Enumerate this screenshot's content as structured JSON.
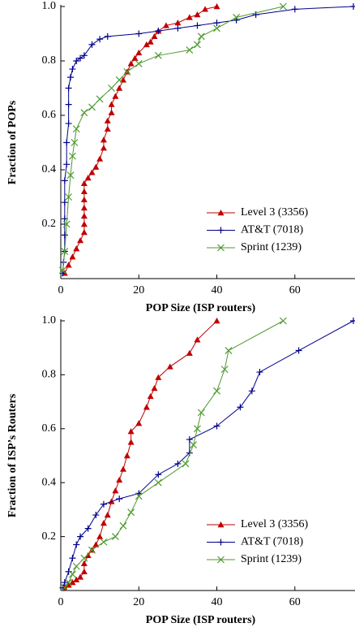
{
  "chart_data": [
    {
      "type": "line",
      "xlabel": "POP Size (ISP routers)",
      "ylabel": "Fraction of POPs",
      "xlim": [
        0,
        75
      ],
      "ylim": [
        0,
        1
      ],
      "xticks": [
        0,
        20,
        40,
        60
      ],
      "yticks": [
        0.2,
        0.4,
        0.6,
        0.8,
        {
          "value": 1,
          "label": "1.0"
        }
      ],
      "legend": "lower right",
      "series": [
        {
          "name": "Level 3 (3356)",
          "color": "#c00000",
          "marker": "triangle",
          "x": [
            1,
            2,
            3,
            4,
            5,
            6,
            6,
            6,
            6,
            6,
            6,
            6,
            7,
            8,
            9,
            10,
            11,
            11,
            12,
            12,
            13,
            13,
            14,
            15,
            16,
            17,
            18,
            19,
            20,
            22,
            23,
            24,
            25,
            27,
            30,
            33,
            35,
            37,
            40
          ],
          "values": [
            0.02,
            0.05,
            0.08,
            0.11,
            0.14,
            0.17,
            0.2,
            0.23,
            0.26,
            0.29,
            0.32,
            0.35,
            0.37,
            0.39,
            0.41,
            0.44,
            0.48,
            0.51,
            0.55,
            0.58,
            0.61,
            0.64,
            0.67,
            0.7,
            0.73,
            0.76,
            0.79,
            0.81,
            0.83,
            0.86,
            0.87,
            0.89,
            0.91,
            0.93,
            0.94,
            0.96,
            0.97,
            0.99,
            1.0
          ]
        },
        {
          "name": "AT&T (7018)",
          "color": "#00008b",
          "marker": "plus",
          "x": [
            0.5,
            0.7,
            1,
            1,
            1,
            1,
            1,
            1.5,
            1.5,
            2,
            2,
            2,
            2.5,
            3,
            4,
            5,
            6,
            8,
            10,
            12,
            20,
            25,
            30,
            35,
            40,
            45,
            50,
            60,
            75
          ],
          "values": [
            0.02,
            0.06,
            0.1,
            0.16,
            0.22,
            0.28,
            0.36,
            0.42,
            0.5,
            0.57,
            0.64,
            0.7,
            0.74,
            0.77,
            0.8,
            0.81,
            0.82,
            0.86,
            0.88,
            0.89,
            0.9,
            0.91,
            0.92,
            0.93,
            0.94,
            0.95,
            0.97,
            0.99,
            1.0
          ]
        },
        {
          "name": "Sprint (1239)",
          "color": "#4e9a2e",
          "marker": "cross",
          "x": [
            0.5,
            1,
            1.5,
            2,
            2.5,
            3,
            3.5,
            4,
            6,
            8,
            10,
            13,
            15,
            17,
            20,
            25,
            33,
            35,
            36,
            40,
            45,
            57
          ],
          "values": [
            0.03,
            0.1,
            0.2,
            0.3,
            0.38,
            0.45,
            0.5,
            0.55,
            0.61,
            0.63,
            0.66,
            0.7,
            0.73,
            0.76,
            0.79,
            0.82,
            0.84,
            0.86,
            0.89,
            0.92,
            0.96,
            1.0
          ]
        }
      ]
    },
    {
      "type": "line",
      "xlabel": "POP Size (ISP routers)",
      "ylabel": "Fraction of ISP’s Routers",
      "xlim": [
        0,
        75
      ],
      "ylim": [
        0,
        1
      ],
      "xticks": [
        0,
        20,
        40,
        60
      ],
      "yticks": [
        0.2,
        0.4,
        0.6,
        0.8,
        {
          "value": 1,
          "label": "1.0"
        }
      ],
      "legend": "lower right",
      "series": [
        {
          "name": "Level 3 (3356)",
          "color": "#c00000",
          "marker": "triangle",
          "x": [
            1,
            2,
            3,
            4,
            5,
            6,
            6,
            7,
            8,
            9,
            10,
            11,
            12,
            13,
            14,
            15,
            16,
            17,
            18,
            18,
            20,
            22,
            23,
            24,
            25,
            28,
            33,
            35,
            40
          ],
          "values": [
            0.01,
            0.02,
            0.03,
            0.04,
            0.05,
            0.07,
            0.1,
            0.13,
            0.15,
            0.17,
            0.2,
            0.25,
            0.28,
            0.33,
            0.37,
            0.41,
            0.45,
            0.5,
            0.55,
            0.59,
            0.62,
            0.68,
            0.72,
            0.75,
            0.79,
            0.83,
            0.88,
            0.93,
            1.0
          ]
        },
        {
          "name": "AT&T (7018)",
          "color": "#00008b",
          "marker": "plus",
          "x": [
            0.5,
            1,
            2,
            3,
            4,
            5,
            7,
            9,
            11,
            15,
            20,
            25,
            30,
            33,
            33,
            40,
            46,
            49,
            51,
            61,
            75
          ],
          "values": [
            0.01,
            0.03,
            0.07,
            0.12,
            0.17,
            0.2,
            0.23,
            0.28,
            0.32,
            0.34,
            0.36,
            0.43,
            0.47,
            0.51,
            0.56,
            0.61,
            0.68,
            0.74,
            0.81,
            0.89,
            1.0
          ]
        },
        {
          "name": "Sprint (1239)",
          "color": "#4e9a2e",
          "marker": "cross",
          "x": [
            1,
            2,
            3,
            4,
            6,
            8,
            11,
            14,
            16,
            18,
            20,
            25,
            32,
            34,
            35,
            36,
            40,
            42,
            43,
            57
          ],
          "values": [
            0.01,
            0.03,
            0.06,
            0.09,
            0.12,
            0.15,
            0.18,
            0.2,
            0.24,
            0.29,
            0.35,
            0.4,
            0.47,
            0.54,
            0.6,
            0.66,
            0.74,
            0.82,
            0.89,
            1.0
          ]
        }
      ]
    }
  ]
}
